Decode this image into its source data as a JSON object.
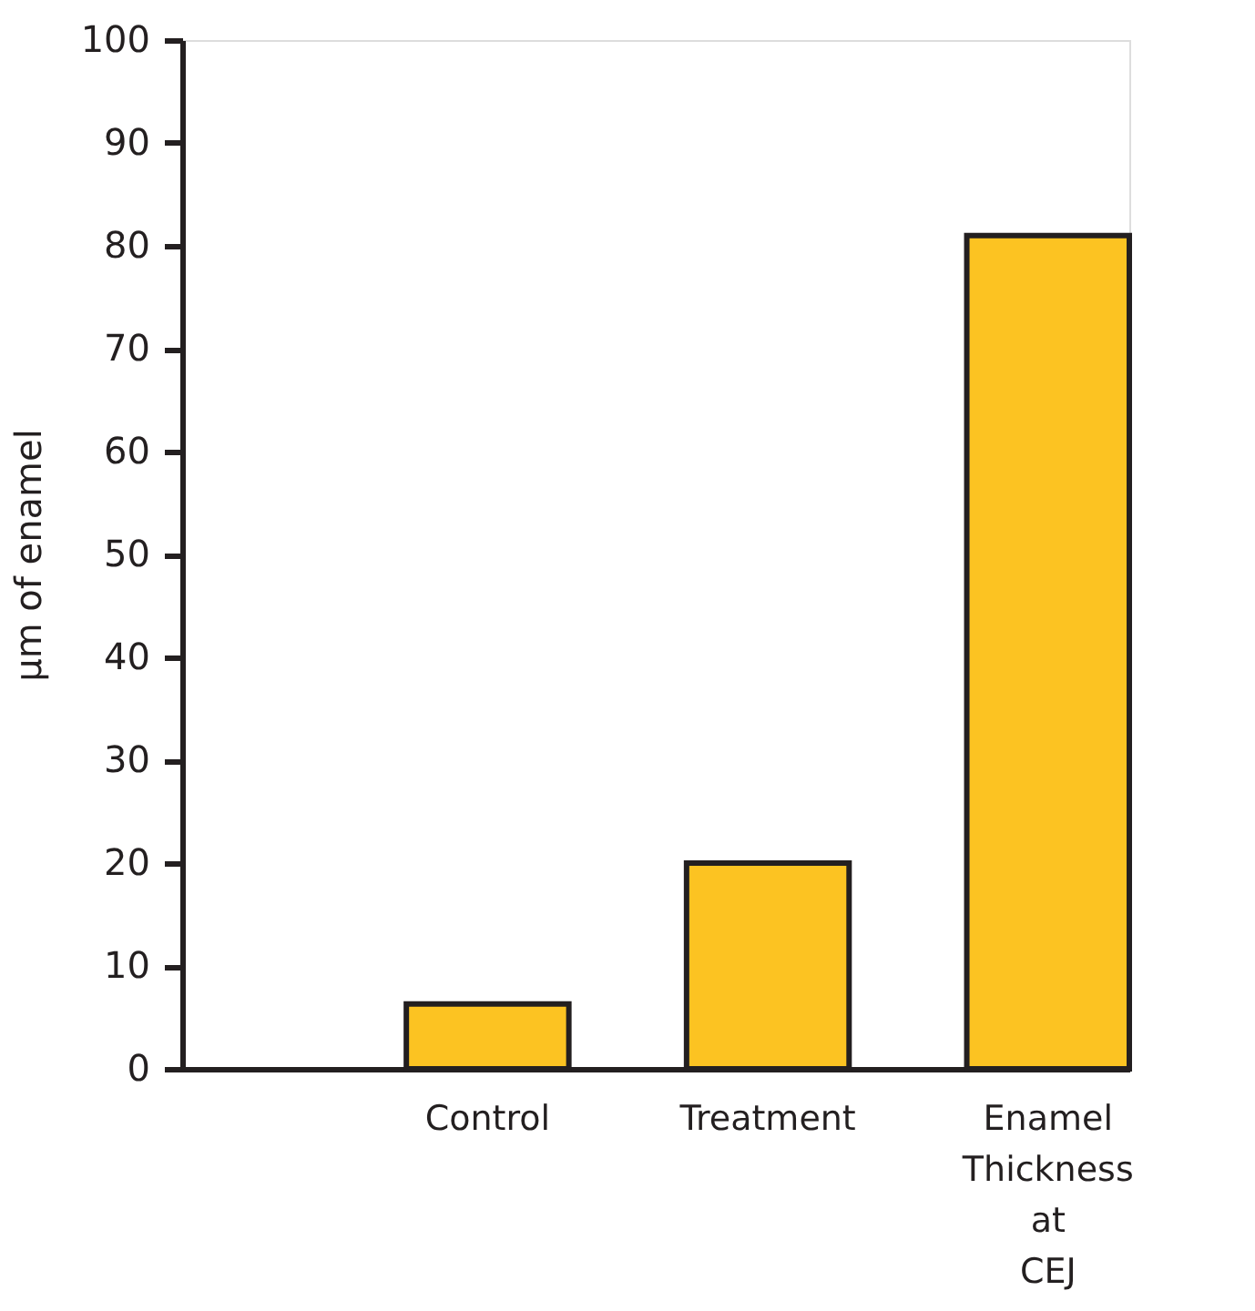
{
  "chart_data": {
    "type": "bar",
    "ylabel": "μm of enamel",
    "categories": [
      "Control",
      "Treatment",
      "Enamel Thickness at CEJ"
    ],
    "values": [
      6.3,
      20,
      81
    ],
    "color": "#fcc322",
    "ylim": [
      0,
      100
    ],
    "yticks": [
      0,
      10,
      20,
      30,
      40,
      50,
      60,
      70,
      80,
      90,
      100
    ],
    "grid": false
  }
}
